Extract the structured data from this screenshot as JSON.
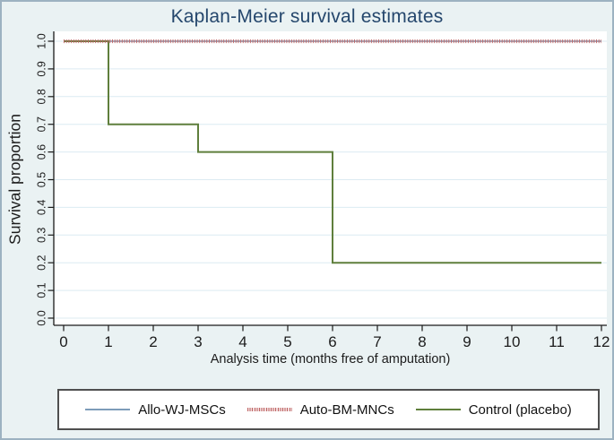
{
  "title": "Kaplan-Meier survival estimates",
  "colors": {
    "figure_background": "#eaf2f3",
    "figure_border": "#9db2c1",
    "title_text": "#25476d",
    "plot_background": "#ffffff",
    "gridline": "#dcebf2",
    "axis": "#1a1a1a",
    "series_allo_wj_mscs": "#7d9cb9",
    "series_auto_bm_mncs": "#bf6565",
    "series_control_placebo": "#5f7f3c",
    "legend_border": "#4f4f4f"
  },
  "chart_data": {
    "type": "line",
    "subtype": "kaplan-meier-step",
    "title": "Kaplan-Meier survival estimates",
    "xlabel": "Analysis time (months free of amputation)",
    "ylabel": "Survival proportion",
    "xlim": [
      0,
      12
    ],
    "ylim": [
      0.0,
      1.0
    ],
    "x_ticks": [
      0,
      1,
      2,
      3,
      4,
      5,
      6,
      7,
      8,
      9,
      10,
      11,
      12
    ],
    "y_ticks": [
      0.0,
      0.1,
      0.2,
      0.3,
      0.4,
      0.5,
      0.6,
      0.7,
      0.8,
      0.9,
      1.0
    ],
    "y_tick_labels": [
      "0.0",
      "0.1",
      "0.2",
      "0.3",
      "0.4",
      "0.5",
      "0.6",
      "0.7",
      "0.8",
      "0.9",
      "1.0"
    ],
    "grid": true,
    "legend_position": "bottom",
    "series": [
      {
        "name": "Allo-WJ-MSCs",
        "style": "solid",
        "color": "#7d9cb9",
        "step_points": [
          [
            0,
            1.0
          ],
          [
            12,
            1.0
          ]
        ]
      },
      {
        "name": "Auto-BM-MNCs",
        "style": "dense-dotted",
        "color": "#bf6565",
        "step_points": [
          [
            0,
            1.0
          ],
          [
            12,
            1.0
          ]
        ]
      },
      {
        "name": "Control (placebo)",
        "style": "solid",
        "color": "#5f7f3c",
        "step_points": [
          [
            0,
            1.0
          ],
          [
            1,
            1.0
          ],
          [
            1,
            0.7
          ],
          [
            3,
            0.7
          ],
          [
            3,
            0.6
          ],
          [
            6,
            0.6
          ],
          [
            6,
            0.2
          ],
          [
            12,
            0.2
          ]
        ]
      }
    ]
  },
  "legend": {
    "items": [
      {
        "label": "Allo-WJ-MSCs"
      },
      {
        "label": "Auto-BM-MNCs"
      },
      {
        "label": "Control (placebo)"
      }
    ]
  }
}
